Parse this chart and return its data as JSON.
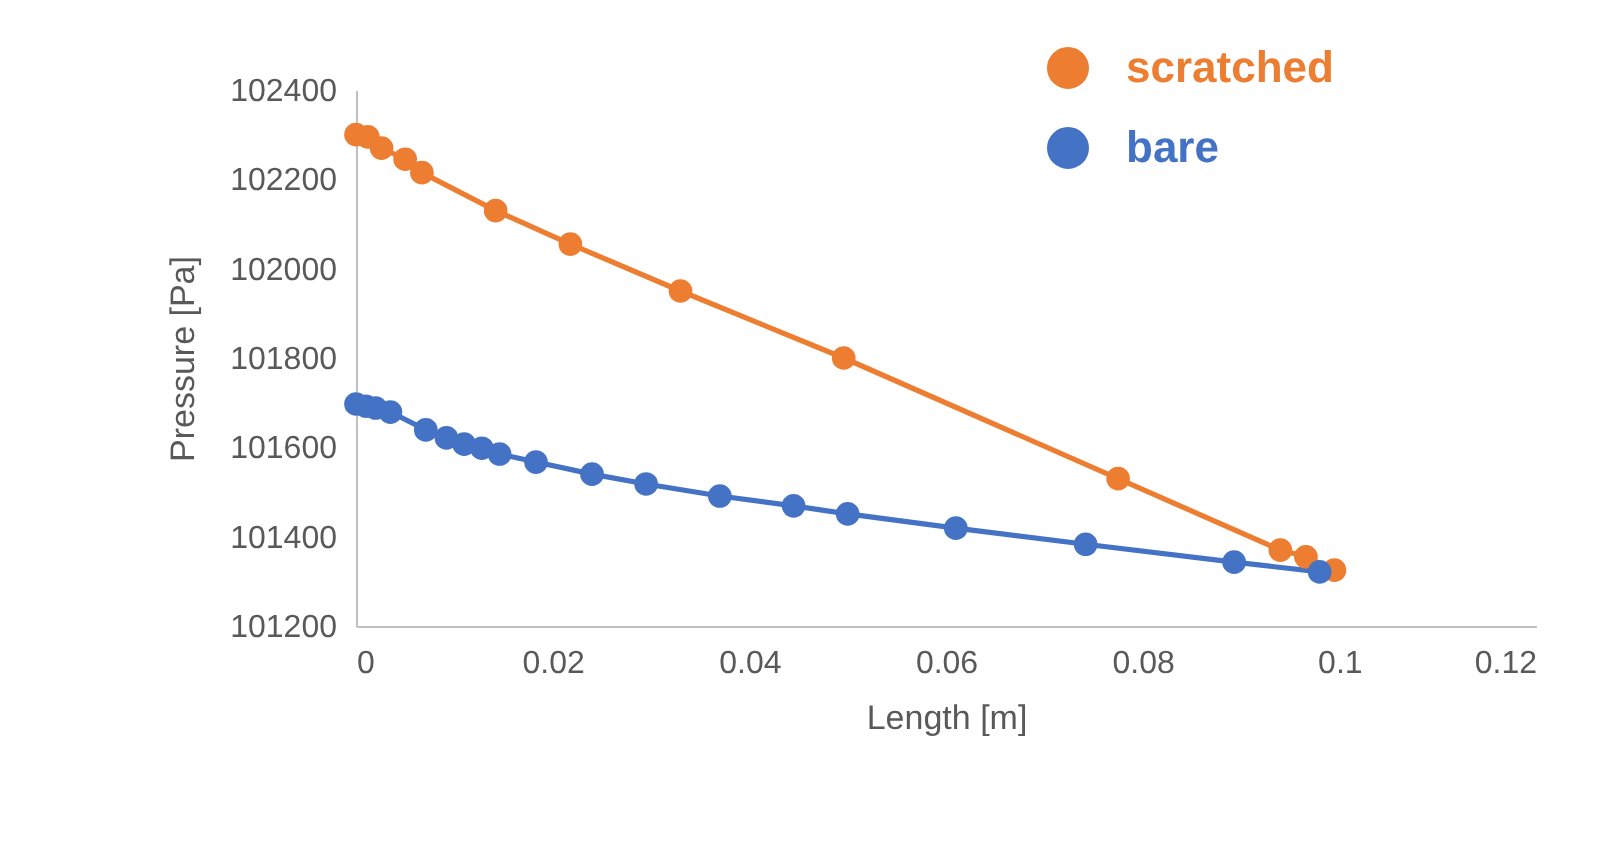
{
  "chart_data": {
    "type": "line",
    "xlabel": "Length [m]",
    "ylabel": "Pressure [Pa]",
    "xlim": [
      0,
      0.12
    ],
    "xticks": [
      0,
      0.02,
      0.04,
      0.06,
      0.08,
      0.1,
      0.12
    ],
    "ylim": [
      101200,
      102400
    ],
    "yticks": [
      101200,
      101400,
      101600,
      101800,
      102000,
      102200,
      102400
    ],
    "grid": false,
    "legend": "top right",
    "marker": "circle",
    "line_style": "solid",
    "series": [
      {
        "name": "scratched",
        "color": "#ed7d31",
        "x": [
          0,
          0.0012,
          0.0026,
          0.005,
          0.0067,
          0.0142,
          0.0218,
          0.033,
          0.0496,
          0.0775,
          0.094,
          0.0966,
          0.0995
        ],
        "values": [
          102300,
          102295,
          102270,
          102245,
          102215,
          102130,
          102055,
          101950,
          101800,
          101530,
          101370,
          101355,
          101325
        ]
      },
      {
        "name": "bare",
        "color": "#4472c4",
        "x": [
          0,
          0.001,
          0.002,
          0.0035,
          0.0071,
          0.0092,
          0.011,
          0.0128,
          0.0146,
          0.0183,
          0.024,
          0.0295,
          0.037,
          0.0445,
          0.05,
          0.061,
          0.0742,
          0.0893,
          0.098
        ],
        "values": [
          101697,
          101692,
          101688,
          101679,
          101639,
          101621,
          101607,
          101598,
          101585,
          101567,
          101540,
          101518,
          101491,
          101469,
          101451,
          101419,
          101383,
          101343,
          101321
        ]
      }
    ]
  }
}
